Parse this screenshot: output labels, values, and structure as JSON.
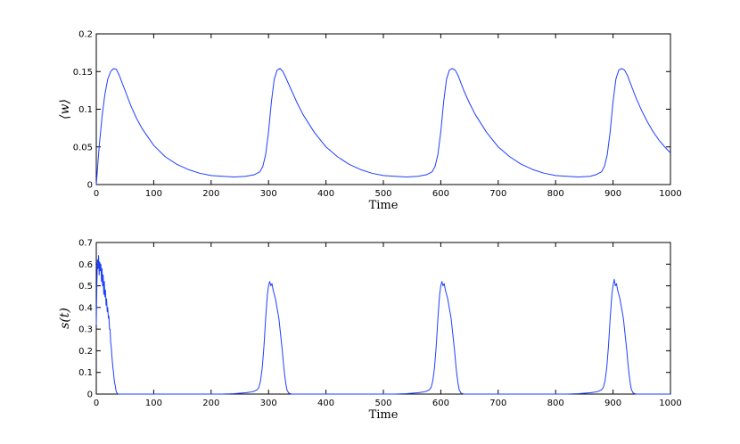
{
  "chart_data": [
    {
      "type": "line",
      "xlabel": "Time",
      "ylabel": "⟨w⟩",
      "xlim": [
        0,
        1000
      ],
      "ylim": [
        0,
        0.2
      ],
      "xticks": [
        "0",
        "100",
        "200",
        "300",
        "400",
        "500",
        "600",
        "700",
        "800",
        "900",
        "1000"
      ],
      "yticks": [
        "0",
        "0.05",
        "0.1",
        "0.15",
        "0.2"
      ],
      "grid": false,
      "color": "#1f3fff",
      "series": [
        {
          "x": [
            0,
            5,
            10,
            15,
            20,
            25,
            30,
            35,
            40,
            50,
            60,
            70,
            80,
            100,
            120,
            140,
            160,
            180,
            200,
            220,
            240,
            260,
            275,
            285,
            290,
            295,
            300,
            305,
            310,
            315,
            320,
            325,
            330,
            340,
            350,
            360,
            380,
            400,
            420,
            440,
            460,
            480,
            500,
            520,
            540,
            560,
            575,
            585,
            590,
            595,
            600,
            605,
            610,
            615,
            620,
            625,
            630,
            635,
            640,
            650,
            660,
            680,
            700,
            720,
            740,
            760,
            780,
            800,
            820,
            840,
            860,
            870,
            880,
            885,
            890,
            895,
            900,
            905,
            910,
            915,
            920,
            925,
            930,
            935,
            940,
            950,
            960,
            970,
            980,
            990,
            1000
          ],
          "y": [
            0,
            0.05,
            0.09,
            0.12,
            0.14,
            0.15,
            0.154,
            0.153,
            0.145,
            0.125,
            0.105,
            0.088,
            0.074,
            0.052,
            0.037,
            0.027,
            0.02,
            0.015,
            0.012,
            0.011,
            0.01,
            0.011,
            0.013,
            0.017,
            0.024,
            0.04,
            0.07,
            0.11,
            0.14,
            0.152,
            0.154,
            0.15,
            0.142,
            0.125,
            0.108,
            0.093,
            0.069,
            0.05,
            0.037,
            0.027,
            0.02,
            0.015,
            0.012,
            0.011,
            0.01,
            0.011,
            0.013,
            0.017,
            0.024,
            0.04,
            0.07,
            0.11,
            0.14,
            0.152,
            0.154,
            0.152,
            0.145,
            0.135,
            0.125,
            0.108,
            0.093,
            0.069,
            0.05,
            0.037,
            0.027,
            0.02,
            0.015,
            0.012,
            0.011,
            0.01,
            0.011,
            0.013,
            0.017,
            0.024,
            0.04,
            0.07,
            0.11,
            0.14,
            0.152,
            0.154,
            0.152,
            0.145,
            0.135,
            0.125,
            0.115,
            0.098,
            0.083,
            0.07,
            0.059,
            0.05,
            0.042
          ]
        }
      ]
    },
    {
      "type": "line",
      "xlabel": "Time",
      "ylabel": "s(t)",
      "xlim": [
        0,
        1000
      ],
      "ylim": [
        0,
        0.7
      ],
      "xticks": [
        "0",
        "100",
        "200",
        "300",
        "400",
        "500",
        "600",
        "700",
        "800",
        "900",
        "1000"
      ],
      "yticks": [
        "0",
        "0.1",
        "0.2",
        "0.3",
        "0.4",
        "0.5",
        "0.6",
        "0.7"
      ],
      "grid": false,
      "color": "#1f3fff",
      "series": [
        {
          "x": [
            0,
            1,
            2,
            3,
            4,
            5,
            6,
            7,
            8,
            9,
            10,
            11,
            12,
            13,
            14,
            15,
            16,
            17,
            18,
            19,
            20,
            21,
            22,
            23,
            24,
            25,
            26,
            27,
            28,
            29,
            30,
            31,
            32,
            33,
            34,
            35,
            36,
            38,
            40,
            42,
            44,
            46,
            50,
            60,
            100,
            150,
            200,
            220,
            240,
            250,
            260,
            270,
            275,
            280,
            283,
            286,
            289,
            292,
            295,
            298,
            300,
            302,
            304,
            306,
            308,
            310,
            312,
            314,
            316,
            318,
            320,
            322,
            324,
            326,
            328,
            330,
            332,
            335,
            340,
            400,
            450,
            500,
            520,
            540,
            550,
            560,
            570,
            575,
            580,
            583,
            586,
            589,
            592,
            595,
            598,
            600,
            602,
            604,
            606,
            608,
            610,
            612,
            614,
            616,
            618,
            620,
            622,
            624,
            626,
            628,
            630,
            632,
            635,
            640,
            700,
            750,
            800,
            820,
            840,
            850,
            860,
            870,
            875,
            880,
            883,
            886,
            889,
            892,
            895,
            898,
            900,
            902,
            904,
            906,
            908,
            910,
            912,
            914,
            916,
            918,
            920,
            922,
            924,
            926,
            928,
            930,
            932,
            935,
            940,
            1000
          ],
          "y": [
            0.32,
            0.5,
            0.62,
            0.58,
            0.64,
            0.55,
            0.61,
            0.57,
            0.6,
            0.52,
            0.58,
            0.5,
            0.55,
            0.46,
            0.52,
            0.45,
            0.48,
            0.41,
            0.44,
            0.38,
            0.4,
            0.35,
            0.36,
            0.3,
            0.3,
            0.24,
            0.22,
            0.18,
            0.15,
            0.12,
            0.1,
            0.07,
            0.05,
            0.04,
            0.02,
            0.01,
            0.005,
            0,
            0,
            0,
            0,
            0,
            0,
            0,
            0,
            0,
            0,
            0,
            0.002,
            0.004,
            0.006,
            0.01,
            0.013,
            0.02,
            0.03,
            0.06,
            0.12,
            0.22,
            0.35,
            0.46,
            0.5,
            0.52,
            0.5,
            0.51,
            0.48,
            0.46,
            0.44,
            0.41,
            0.38,
            0.35,
            0.3,
            0.25,
            0.2,
            0.14,
            0.09,
            0.05,
            0.02,
            0.005,
            0,
            0,
            0,
            0,
            0,
            0.002,
            0.004,
            0.006,
            0.01,
            0.013,
            0.02,
            0.03,
            0.06,
            0.12,
            0.22,
            0.35,
            0.46,
            0.5,
            0.52,
            0.5,
            0.51,
            0.48,
            0.46,
            0.44,
            0.41,
            0.38,
            0.35,
            0.3,
            0.25,
            0.2,
            0.14,
            0.09,
            0.05,
            0.02,
            0.005,
            0,
            0,
            0,
            0,
            0,
            0.002,
            0.004,
            0.006,
            0.01,
            0.013,
            0.02,
            0.03,
            0.06,
            0.12,
            0.22,
            0.35,
            0.46,
            0.5,
            0.53,
            0.5,
            0.51,
            0.48,
            0.46,
            0.44,
            0.41,
            0.38,
            0.35,
            0.3,
            0.25,
            0.2,
            0.14,
            0.09,
            0.05,
            0.02,
            0.005,
            0,
            0
          ]
        }
      ]
    }
  ]
}
